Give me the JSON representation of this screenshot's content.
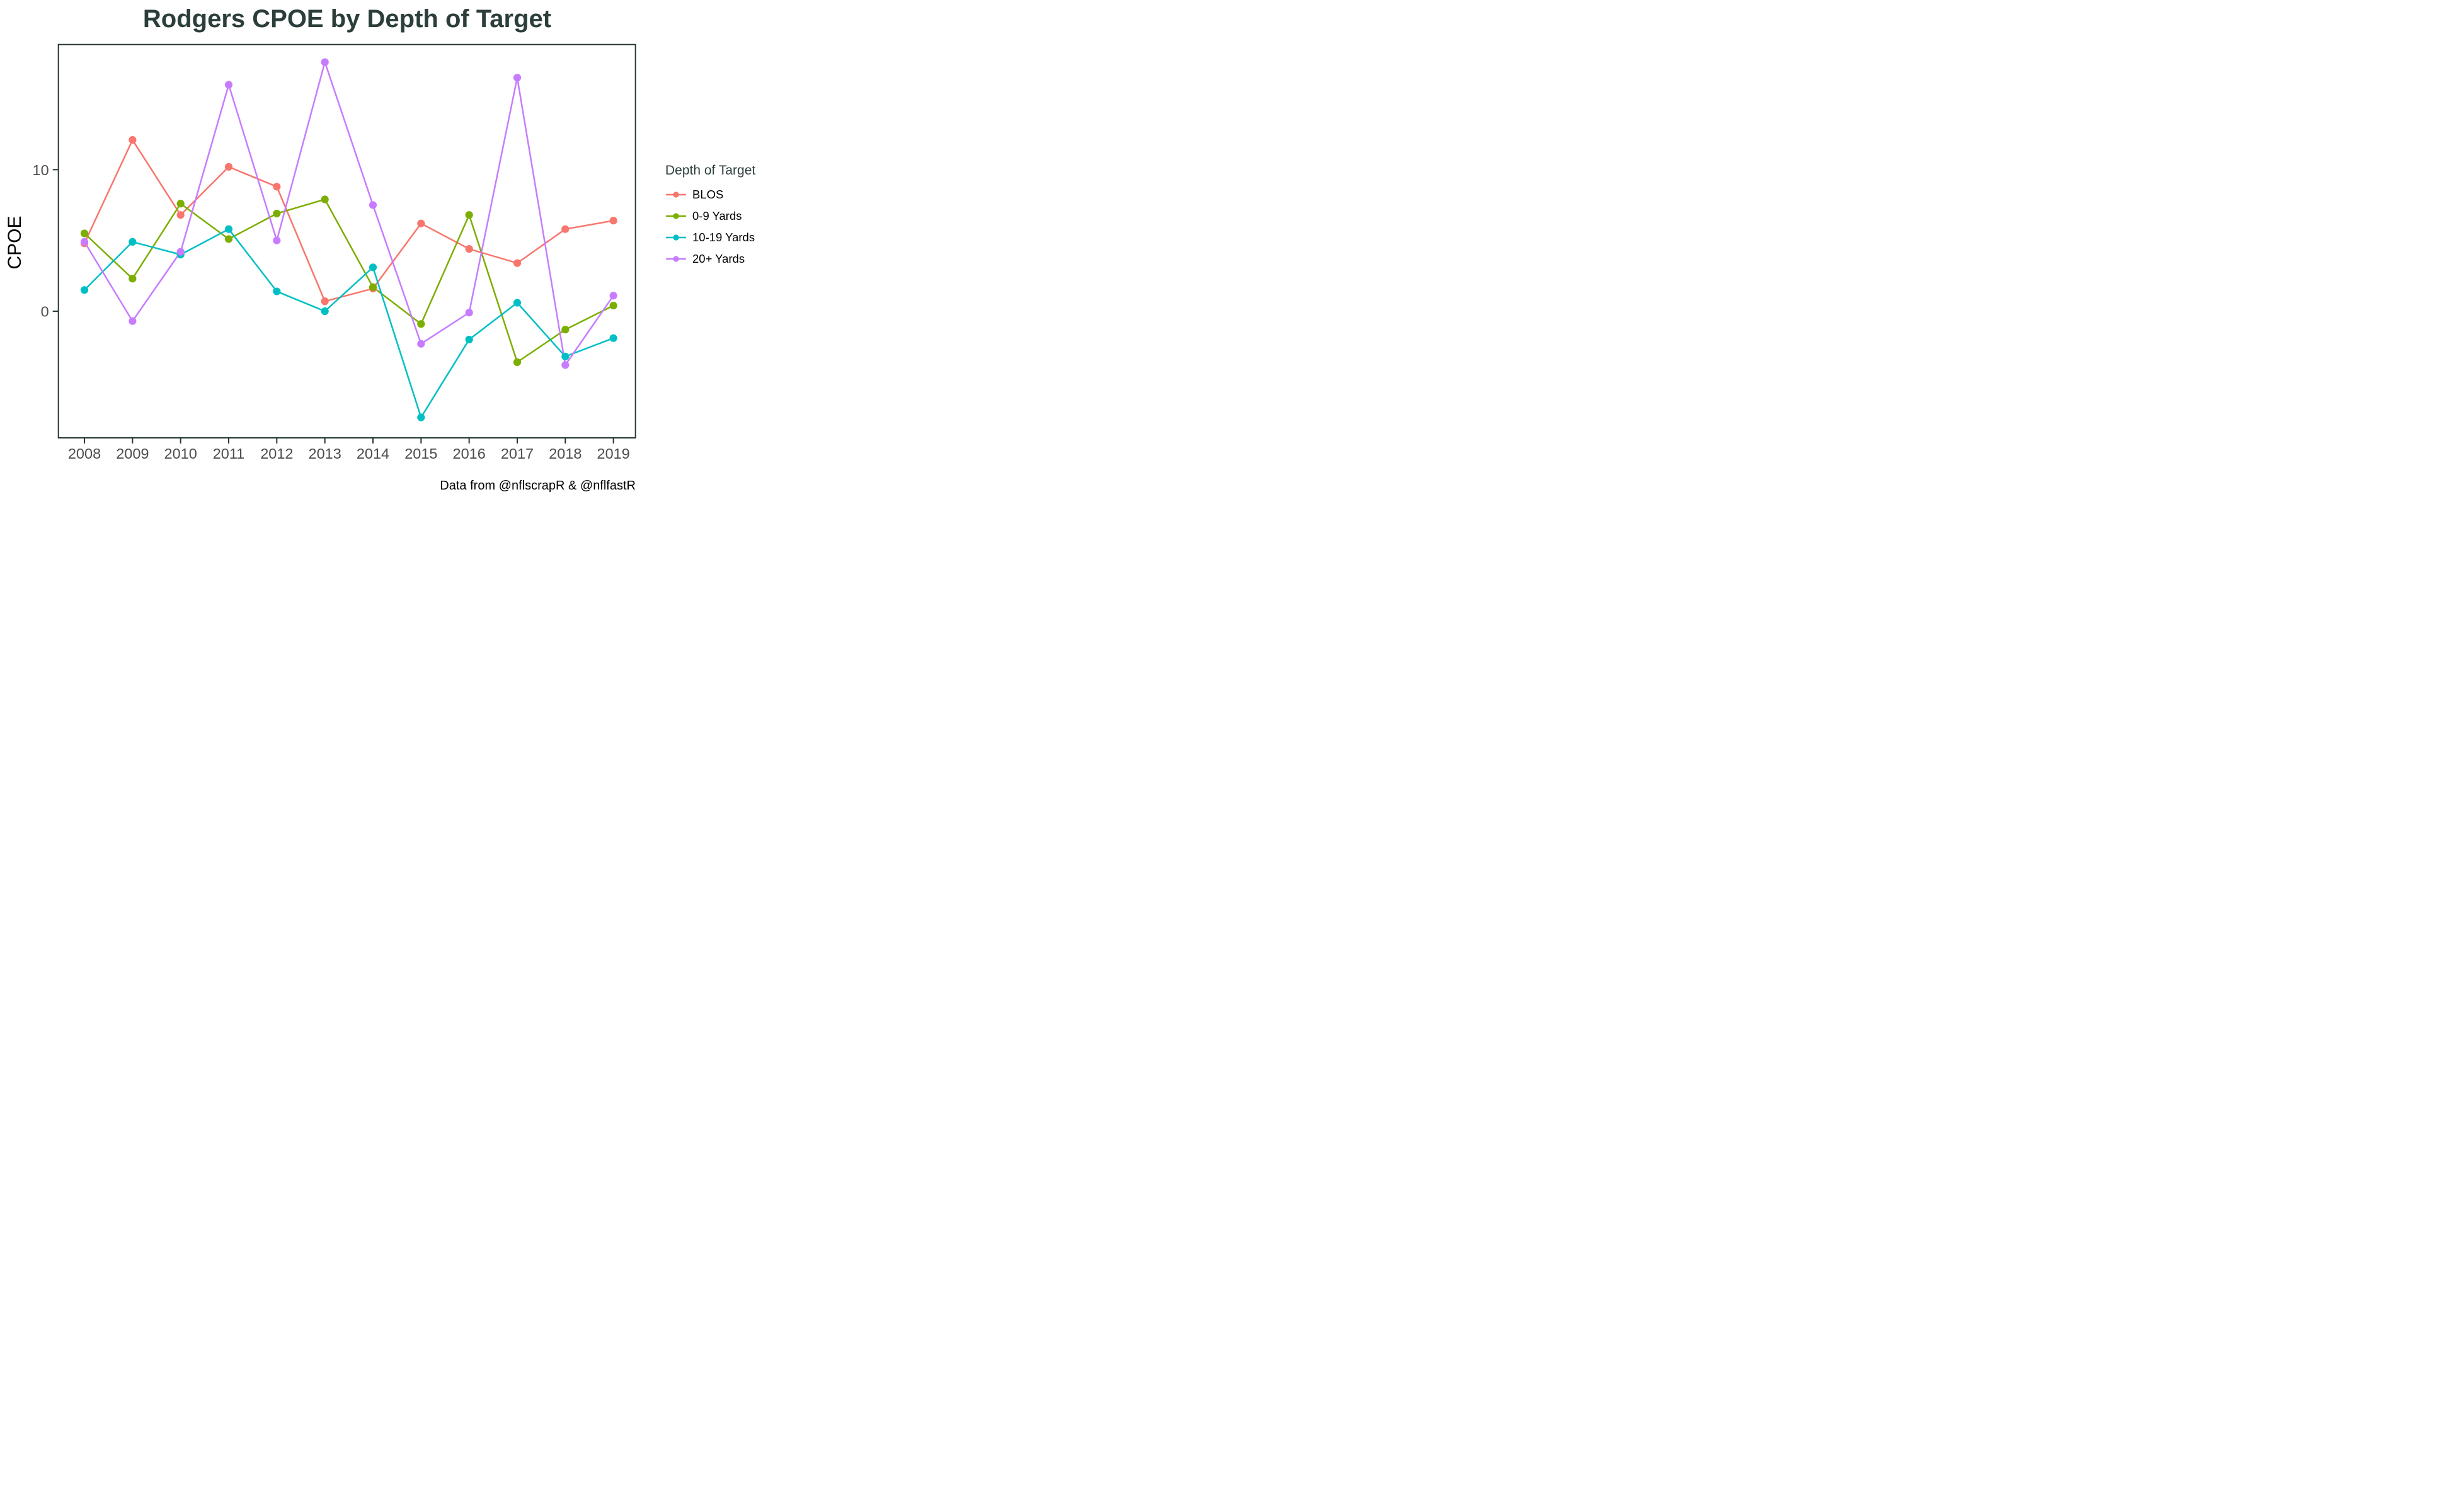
{
  "title": "Rodgers CPOE by Depth of Target",
  "caption": "Data from @nflscrapR & @nflfastR",
  "legend": {
    "title": "Depth of Target"
  },
  "colors": {
    "title_text": "#2c3e3b",
    "axis_line": "#233736",
    "tick_label": "#4d4d4d",
    "background": "#ffffff"
  },
  "chart_data": {
    "type": "line",
    "title": "Rodgers CPOE by Depth of Target",
    "xlabel": "",
    "ylabel": "CPOE",
    "categories": [
      "2008",
      "2009",
      "2010",
      "2011",
      "2012",
      "2013",
      "2014",
      "2015",
      "2016",
      "2017",
      "2018",
      "2019"
    ],
    "series": [
      {
        "name": "BLOS",
        "color": "#F8766D",
        "values": [
          4.8,
          12.1,
          6.8,
          10.2,
          8.8,
          0.7,
          1.6,
          6.2,
          4.4,
          3.4,
          5.8,
          6.4
        ]
      },
      {
        "name": "0-9 Yards",
        "color": "#7CAE00",
        "values": [
          5.5,
          2.3,
          7.6,
          5.1,
          6.9,
          7.9,
          1.7,
          -0.9,
          6.8,
          -3.6,
          -1.3,
          0.4
        ]
      },
      {
        "name": "10-19 Yards",
        "color": "#00BFC4",
        "values": [
          1.5,
          4.9,
          4.0,
          5.8,
          1.4,
          0.0,
          3.1,
          -7.5,
          -2.0,
          0.6,
          -3.2,
          -1.9
        ]
      },
      {
        "name": "20+ Yards",
        "color": "#C77CFF",
        "values": [
          4.9,
          -0.7,
          4.2,
          16.0,
          5.0,
          17.6,
          7.5,
          -2.3,
          -0.1,
          16.5,
          -3.8,
          1.1
        ]
      }
    ],
    "yticks": [
      0,
      10
    ],
    "ylim": [
      -9,
      19
    ],
    "grid": false,
    "legend_position": "right",
    "legend_title": "Depth of Target"
  }
}
